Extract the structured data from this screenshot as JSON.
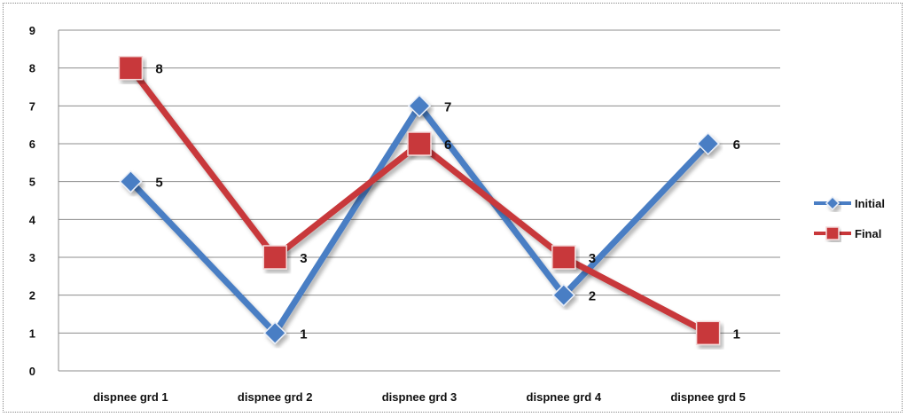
{
  "chart_data": {
    "type": "line",
    "categories": [
      "dispnee grd 1",
      "dispnee grd 2",
      "dispnee grd 3",
      "dispnee grd 4",
      "dispnee grd 5"
    ],
    "series": [
      {
        "name": "Initial",
        "values": [
          5,
          1,
          7,
          2,
          6
        ],
        "color": "#4A7EC4",
        "marker": "diamond"
      },
      {
        "name": "Final",
        "values": [
          8,
          3,
          6,
          3,
          1
        ],
        "color": "#C8373A",
        "marker": "square"
      }
    ],
    "title": "",
    "xlabel": "",
    "ylabel": "",
    "ylim": [
      0,
      9
    ],
    "yticks": [
      0,
      1,
      2,
      3,
      4,
      5,
      6,
      7,
      8,
      9
    ],
    "grid": true,
    "data_labels": true,
    "legend_position": "right"
  }
}
